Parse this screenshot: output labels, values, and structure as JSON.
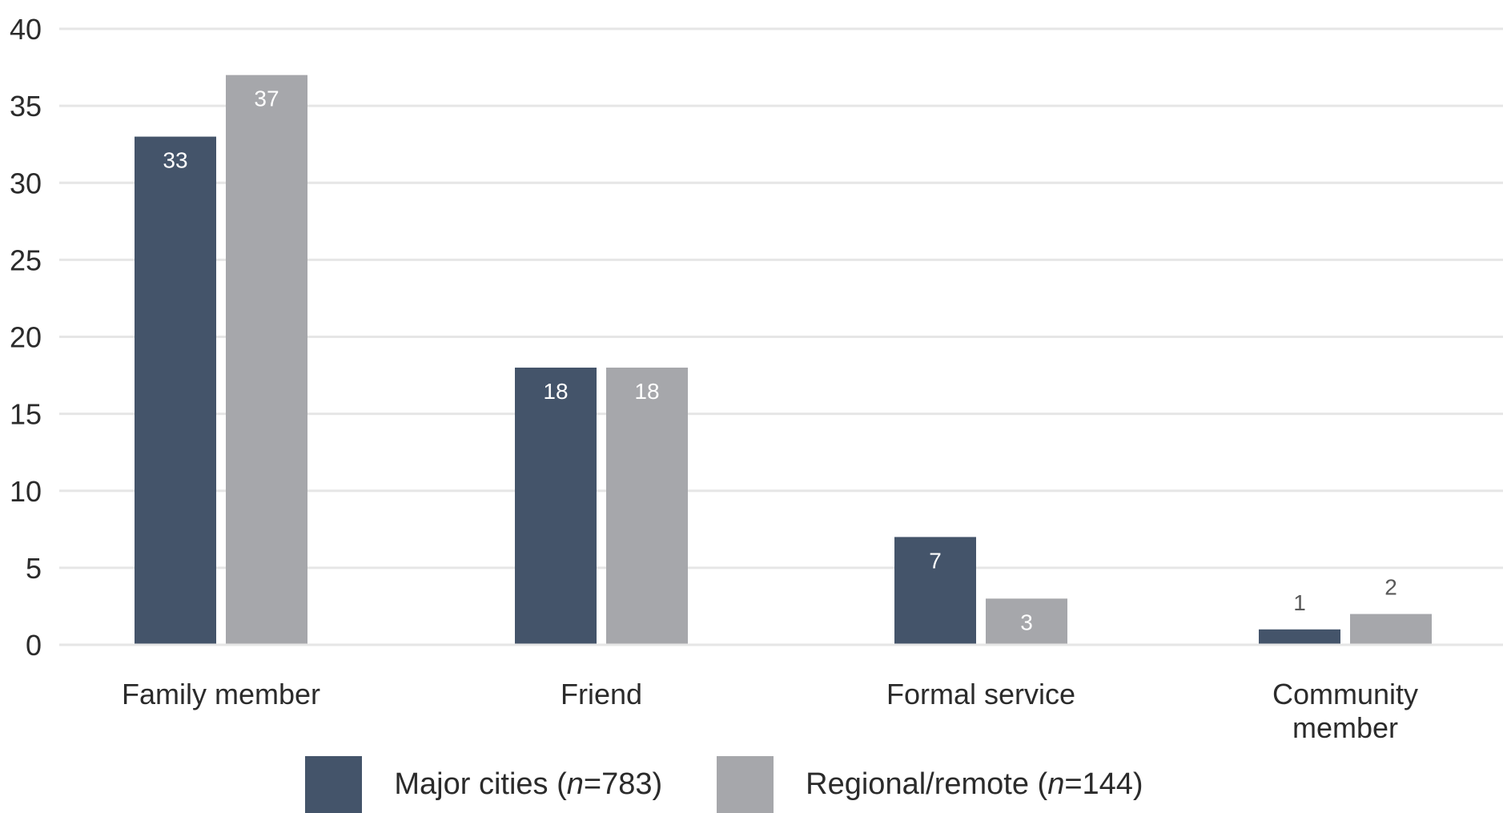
{
  "chart_data": {
    "type": "bar",
    "categories": [
      [
        "Family member"
      ],
      [
        "Friend"
      ],
      [
        "Formal service"
      ],
      [
        "Community",
        "member"
      ]
    ],
    "series": [
      {
        "name": "Major cities (n=783)",
        "name_pre": "Major cities (",
        "name_italic": "n",
        "name_post": "=783)",
        "color": "#44546a",
        "values": [
          33,
          18,
          7,
          1
        ]
      },
      {
        "name": "Regional/remote (n=144)",
        "name_pre": "Regional/remote (",
        "name_italic": "n",
        "name_post": "=144)",
        "color": "#a6a7ab",
        "values": [
          37,
          18,
          3,
          2
        ]
      }
    ],
    "title": "",
    "xlabel": "",
    "ylabel": "",
    "ylim": [
      0,
      40
    ],
    "yticks": [
      0,
      5,
      10,
      15,
      20,
      25,
      30,
      35,
      40
    ],
    "grid": true,
    "legend_position": "bottom",
    "gridline_color": "#e6e6e6",
    "label_inside_color": "#ffffff",
    "label_outside_color": "#595959",
    "text_color": "#2b2b2b"
  }
}
